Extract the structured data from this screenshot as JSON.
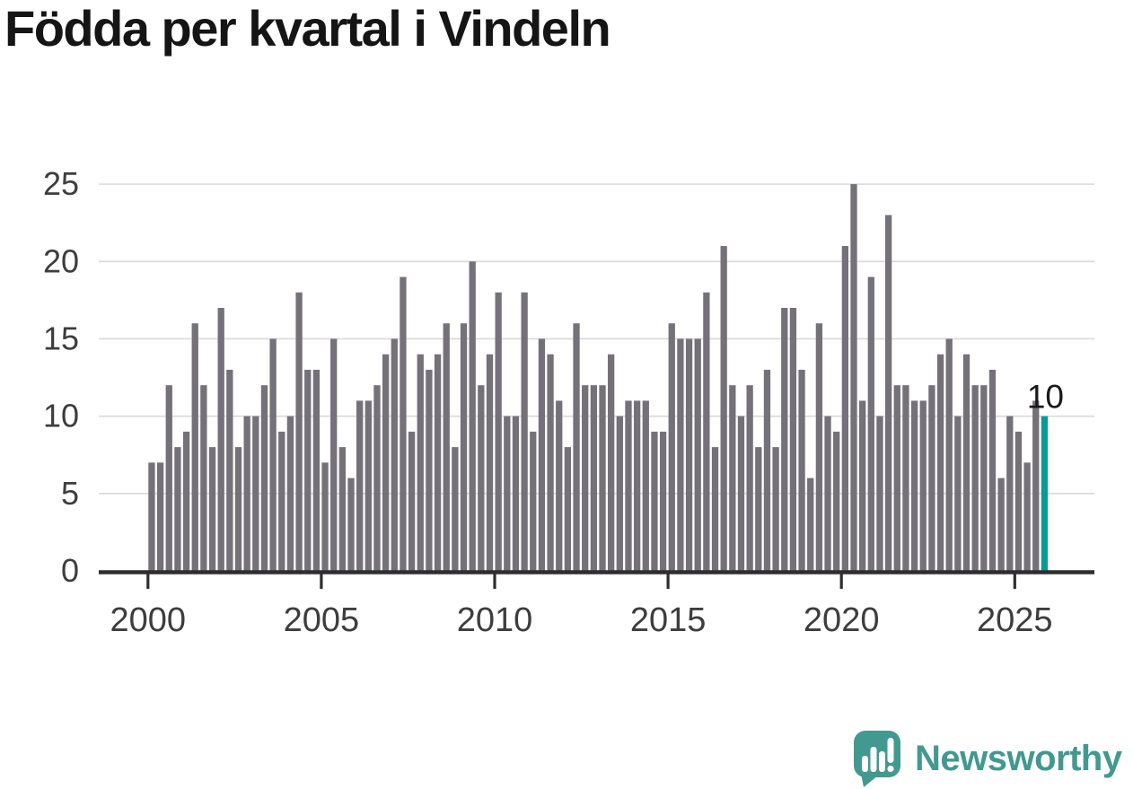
{
  "title": "Födda per kvartal i Vindeln",
  "annotation": {
    "last_value_label": "10"
  },
  "branding": {
    "name": "Newsworthy",
    "brand_color": "#41998F"
  },
  "chart_data": {
    "type": "bar",
    "title": "Födda per kvartal i Vindeln",
    "x_unit": "quarter",
    "start_period": "2000-Q1",
    "end_period": "2025-Q4",
    "x_tick_labels": [
      "2000",
      "2005",
      "2010",
      "2015",
      "2020",
      "2025"
    ],
    "y_ticks": [
      0,
      5,
      10,
      15,
      20,
      25
    ],
    "ylim": [
      0,
      26
    ],
    "grid": true,
    "legend": false,
    "bar_color": "#757179",
    "highlight_color": "#0A9C94",
    "highlight_index": 103,
    "highlight_label": "10",
    "axis_color": "#2E2E2E",
    "grid_color": "#D9D9D9",
    "label_color": "#3D3D3D",
    "values": [
      7,
      7,
      12,
      8,
      9,
      16,
      12,
      8,
      17,
      13,
      8,
      10,
      10,
      12,
      15,
      9,
      10,
      18,
      13,
      13,
      7,
      15,
      8,
      6,
      11,
      11,
      12,
      14,
      15,
      19,
      9,
      14,
      13,
      14,
      16,
      8,
      16,
      20,
      12,
      14,
      18,
      10,
      10,
      18,
      9,
      15,
      14,
      11,
      8,
      16,
      12,
      12,
      12,
      14,
      10,
      11,
      11,
      11,
      9,
      9,
      16,
      15,
      15,
      15,
      18,
      8,
      21,
      12,
      10,
      12,
      8,
      13,
      8,
      17,
      17,
      13,
      6,
      16,
      10,
      9,
      21,
      25,
      11,
      19,
      10,
      23,
      12,
      12,
      11,
      11,
      12,
      14,
      15,
      10,
      14,
      12,
      12,
      13,
      6,
      10,
      9,
      7,
      11,
      10
    ]
  }
}
